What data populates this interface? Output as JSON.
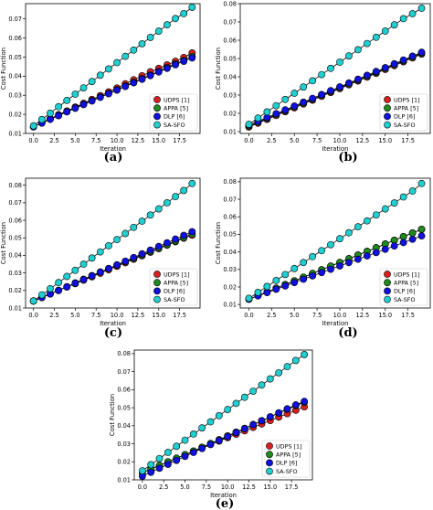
{
  "chart_data": [
    {
      "type": "line",
      "panel_label": "(a)",
      "xlabel": "Iteration",
      "ylabel": "Cost Function",
      "xlim": [
        -0.95,
        19.95
      ],
      "ylim": [
        0.01,
        0.078
      ],
      "xticks": [
        0.0,
        2.5,
        5.0,
        7.5,
        10.0,
        12.5,
        15.0,
        17.5
      ],
      "xtick_labels": [
        "0.0",
        "2.5",
        "5.0",
        "7.5",
        "10.0",
        "12.5",
        "15.0",
        "17.5"
      ],
      "yticks": [
        0.01,
        0.02,
        0.03,
        0.04,
        0.05,
        0.06,
        0.07
      ],
      "ytick_labels": [
        "0.01",
        "0.02",
        "0.03",
        "0.04",
        "0.05",
        "0.06",
        "0.07"
      ],
      "legend_position": "lower-right",
      "grid": false,
      "x": [
        0,
        1,
        2,
        3,
        4,
        5,
        6,
        7,
        8,
        9,
        10,
        11,
        12,
        13,
        14,
        15,
        16,
        17,
        18,
        19
      ],
      "series": [
        {
          "name": "UDPS [1]",
          "color": "#d62020",
          "values": [
            0.0135,
            0.0156,
            0.0177,
            0.0198,
            0.0218,
            0.0238,
            0.0258,
            0.0278,
            0.0298,
            0.0318,
            0.0338,
            0.036,
            0.0381,
            0.0402,
            0.0423,
            0.0441,
            0.0459,
            0.0478,
            0.0498,
            0.0522
          ]
        },
        {
          "name": "APPA [5]",
          "color": "#1f8a1f",
          "values": [
            0.0135,
            0.0155,
            0.0175,
            0.0195,
            0.0214,
            0.0234,
            0.0253,
            0.0272,
            0.0291,
            0.031,
            0.0329,
            0.0349,
            0.0368,
            0.0387,
            0.0406,
            0.0425,
            0.0445,
            0.0465,
            0.0483,
            0.0503
          ]
        },
        {
          "name": "DLP [6]",
          "color": "#1010e0",
          "values": [
            0.0135,
            0.0154,
            0.0174,
            0.0193,
            0.0213,
            0.0232,
            0.0251,
            0.027,
            0.0289,
            0.0308,
            0.0327,
            0.0346,
            0.0365,
            0.0384,
            0.0403,
            0.0422,
            0.0441,
            0.046,
            0.0478,
            0.0496
          ]
        },
        {
          "name": "SA-SFO",
          "color": "#20d0d0",
          "values": [
            0.014,
            0.0173,
            0.0206,
            0.024,
            0.0273,
            0.0306,
            0.0339,
            0.0372,
            0.0405,
            0.0438,
            0.0471,
            0.0504,
            0.0537,
            0.057,
            0.0603,
            0.0636,
            0.0669,
            0.0702,
            0.0728,
            0.0761
          ]
        }
      ]
    },
    {
      "type": "line",
      "panel_label": "(b)",
      "xlabel": "Iteration",
      "ylabel": "Cost Function",
      "xlim": [
        -0.95,
        19.95
      ],
      "ylim": [
        0.009,
        0.08
      ],
      "xticks": [
        0.0,
        2.5,
        5.0,
        7.5,
        10.0,
        12.5,
        15.0,
        17.5
      ],
      "xtick_labels": [
        "0.0",
        "2.5",
        "5.0",
        "7.5",
        "10.0",
        "12.5",
        "15.0",
        "17.5"
      ],
      "yticks": [
        0.01,
        0.02,
        0.03,
        0.04,
        0.05,
        0.06,
        0.07,
        0.08
      ],
      "ytick_labels": [
        "0.01",
        "0.02",
        "0.03",
        "0.04",
        "0.05",
        "0.06",
        "0.07",
        "0.08"
      ],
      "legend_position": "lower-right",
      "grid": false,
      "x": [
        0,
        1,
        2,
        3,
        4,
        5,
        6,
        7,
        8,
        9,
        10,
        11,
        12,
        13,
        14,
        15,
        16,
        17,
        18,
        19
      ],
      "series": [
        {
          "name": "UDPS [1]",
          "color": "#d62020",
          "values": [
            0.0125,
            0.0146,
            0.0167,
            0.0188,
            0.0209,
            0.023,
            0.0251,
            0.0272,
            0.0293,
            0.0314,
            0.0335,
            0.0356,
            0.0377,
            0.0398,
            0.0419,
            0.044,
            0.0461,
            0.0482,
            0.0503,
            0.0524
          ]
        },
        {
          "name": "APPA [5]",
          "color": "#1f8a1f",
          "values": [
            0.013,
            0.0151,
            0.0172,
            0.0193,
            0.0214,
            0.0235,
            0.0256,
            0.0277,
            0.0298,
            0.0319,
            0.034,
            0.0361,
            0.0382,
            0.0403,
            0.0424,
            0.0445,
            0.0466,
            0.0487,
            0.0508,
            0.0529
          ]
        },
        {
          "name": "DLP [6]",
          "color": "#1010e0",
          "values": [
            0.0135,
            0.0156,
            0.0177,
            0.0198,
            0.0219,
            0.024,
            0.0261,
            0.0282,
            0.0303,
            0.0324,
            0.0345,
            0.0366,
            0.0387,
            0.0408,
            0.0429,
            0.045,
            0.0471,
            0.0492,
            0.0513,
            0.0534
          ]
        },
        {
          "name": "SA-SFO",
          "color": "#20d0d0",
          "values": [
            0.014,
            0.0174,
            0.0208,
            0.0242,
            0.0276,
            0.031,
            0.0344,
            0.0378,
            0.0412,
            0.0446,
            0.048,
            0.0514,
            0.0548,
            0.0582,
            0.0616,
            0.065,
            0.0684,
            0.0718,
            0.0745,
            0.0775
          ]
        }
      ]
    },
    {
      "type": "line",
      "panel_label": "(c)",
      "xlabel": "Iteration",
      "ylabel": "Cost Function",
      "xlim": [
        -0.95,
        19.95
      ],
      "ylim": [
        0.01,
        0.084
      ],
      "xticks": [
        0.0,
        2.5,
        5.0,
        7.5,
        10.0,
        12.5,
        15.0,
        17.5
      ],
      "xtick_labels": [
        "0.0",
        "2.5",
        "5.0",
        "7.5",
        "10.0",
        "12.5",
        "15.0",
        "17.5"
      ],
      "yticks": [
        0.01,
        0.02,
        0.03,
        0.04,
        0.05,
        0.06,
        0.07,
        0.08
      ],
      "ytick_labels": [
        "0.01",
        "0.02",
        "0.03",
        "0.04",
        "0.05",
        "0.06",
        "0.07",
        "0.08"
      ],
      "legend_position": "lower-right",
      "grid": false,
      "x": [
        0,
        1,
        2,
        3,
        4,
        5,
        6,
        7,
        8,
        9,
        10,
        11,
        12,
        13,
        14,
        15,
        16,
        17,
        18,
        19
      ],
      "series": [
        {
          "name": "UDPS [1]",
          "color": "#d62020",
          "values": [
            0.014,
            0.016,
            0.018,
            0.02,
            0.022,
            0.0239,
            0.0259,
            0.0278,
            0.0298,
            0.0318,
            0.0338,
            0.0358,
            0.0378,
            0.0398,
            0.0418,
            0.0438,
            0.0458,
            0.0478,
            0.0498,
            0.0515
          ]
        },
        {
          "name": "APPA [5]",
          "color": "#1f8a1f",
          "values": [
            0.014,
            0.016,
            0.018,
            0.0201,
            0.0222,
            0.0243,
            0.0264,
            0.0285,
            0.0306,
            0.0325,
            0.0344,
            0.0363,
            0.0382,
            0.0402,
            0.0422,
            0.0442,
            0.0462,
            0.0482,
            0.0502,
            0.0522
          ]
        },
        {
          "name": "DLP [6]",
          "color": "#1010e0",
          "values": [
            0.014,
            0.016,
            0.018,
            0.02,
            0.022,
            0.0241,
            0.0262,
            0.0283,
            0.0304,
            0.0325,
            0.0346,
            0.0367,
            0.0388,
            0.0409,
            0.043,
            0.0451,
            0.0472,
            0.0493,
            0.0514,
            0.0535
          ]
        },
        {
          "name": "SA-SFO",
          "color": "#20d0d0",
          "values": [
            0.014,
            0.0175,
            0.021,
            0.0245,
            0.028,
            0.0315,
            0.035,
            0.0385,
            0.042,
            0.0455,
            0.049,
            0.0525,
            0.056,
            0.0595,
            0.063,
            0.0665,
            0.07,
            0.0735,
            0.077,
            0.081
          ]
        }
      ]
    },
    {
      "type": "line",
      "panel_label": "(d)",
      "xlabel": "Iteration",
      "ylabel": "Cost Function",
      "xlim": [
        -0.95,
        19.95
      ],
      "ylim": [
        0.008,
        0.082
      ],
      "xticks": [
        0.0,
        2.5,
        5.0,
        7.5,
        10.0,
        12.5,
        15.0,
        17.5
      ],
      "xtick_labels": [
        "0.0",
        "2.5",
        "5.0",
        "7.5",
        "10.0",
        "12.5",
        "15.0",
        "17.5"
      ],
      "yticks": [
        0.01,
        0.02,
        0.03,
        0.04,
        0.05,
        0.06,
        0.07,
        0.08
      ],
      "ytick_labels": [
        "0.01",
        "0.02",
        "0.03",
        "0.04",
        "0.05",
        "0.06",
        "0.07",
        "0.08"
      ],
      "legend_position": "lower-right",
      "grid": false,
      "x": [
        0,
        1,
        2,
        3,
        4,
        5,
        6,
        7,
        8,
        9,
        10,
        11,
        12,
        13,
        14,
        15,
        16,
        17,
        18,
        19
      ],
      "series": [
        {
          "name": "UDPS [1]",
          "color": "#d62020",
          "values": [
            0.013,
            0.0151,
            0.0172,
            0.0193,
            0.0214,
            0.0235,
            0.0256,
            0.0277,
            0.0298,
            0.0319,
            0.034,
            0.0361,
            0.0382,
            0.0403,
            0.0424,
            0.0445,
            0.0466,
            0.0487,
            0.0508,
            0.0529
          ]
        },
        {
          "name": "APPA [5]",
          "color": "#1f8a1f",
          "values": [
            0.013,
            0.0151,
            0.0172,
            0.0193,
            0.0214,
            0.0235,
            0.0256,
            0.0277,
            0.0298,
            0.0319,
            0.034,
            0.0361,
            0.0382,
            0.0403,
            0.0424,
            0.0445,
            0.0466,
            0.0487,
            0.0508,
            0.0529
          ]
        },
        {
          "name": "DLP [6]",
          "color": "#1010e0",
          "values": [
            0.013,
            0.0149,
            0.0168,
            0.0187,
            0.0206,
            0.0225,
            0.0244,
            0.0263,
            0.0282,
            0.0301,
            0.032,
            0.0339,
            0.0358,
            0.0377,
            0.0396,
            0.0415,
            0.0434,
            0.0453,
            0.0472,
            0.0491
          ]
        },
        {
          "name": "SA-SFO",
          "color": "#20d0d0",
          "values": [
            0.0135,
            0.0169,
            0.0203,
            0.0237,
            0.0271,
            0.0305,
            0.0339,
            0.0373,
            0.0407,
            0.0441,
            0.0475,
            0.0509,
            0.0543,
            0.0577,
            0.0611,
            0.0645,
            0.0679,
            0.0713,
            0.0747,
            0.079
          ]
        }
      ]
    },
    {
      "type": "line",
      "panel_label": "(e)",
      "xlabel": "Iteration",
      "ylabel": "Cost Function",
      "xlim": [
        -0.95,
        19.95
      ],
      "ylim": [
        0.01,
        0.082
      ],
      "xticks": [
        0.0,
        2.5,
        5.0,
        7.5,
        10.0,
        12.5,
        15.0,
        17.5
      ],
      "xtick_labels": [
        "0.0",
        "2.5",
        "5.0",
        "7.5",
        "10.0",
        "12.5",
        "15.0",
        "17.5"
      ],
      "yticks": [
        0.01,
        0.02,
        0.03,
        0.04,
        0.05,
        0.06,
        0.07,
        0.08
      ],
      "ytick_labels": [
        "0.01",
        "0.02",
        "0.03",
        "0.04",
        "0.05",
        "0.06",
        "0.07",
        "0.08"
      ],
      "legend_position": "lower-right",
      "grid": false,
      "x": [
        0,
        1,
        2,
        3,
        4,
        5,
        6,
        7,
        8,
        9,
        10,
        11,
        12,
        13,
        14,
        15,
        16,
        17,
        18,
        19
      ],
      "series": [
        {
          "name": "UDPS [1]",
          "color": "#d62020",
          "values": [
            0.014,
            0.016,
            0.018,
            0.02,
            0.022,
            0.0239,
            0.0258,
            0.0277,
            0.0296,
            0.0315,
            0.0334,
            0.0353,
            0.0372,
            0.0391,
            0.041,
            0.0429,
            0.0448,
            0.0467,
            0.0486,
            0.0505
          ]
        },
        {
          "name": "APPA [5]",
          "color": "#1f8a1f",
          "values": [
            0.014,
            0.016,
            0.018,
            0.02,
            0.022,
            0.024,
            0.026,
            0.0281,
            0.0302,
            0.0323,
            0.0344,
            0.0365,
            0.0386,
            0.0407,
            0.0428,
            0.0449,
            0.047,
            0.0491,
            0.0512,
            0.053
          ]
        },
        {
          "name": "DLP [6]",
          "color": "#1010e0",
          "values": [
            0.012,
            0.0142,
            0.0164,
            0.0186,
            0.0208,
            0.023,
            0.0252,
            0.0274,
            0.0296,
            0.0318,
            0.034,
            0.0362,
            0.0384,
            0.0406,
            0.0428,
            0.045,
            0.0472,
            0.0494,
            0.0516,
            0.0535
          ]
        },
        {
          "name": "SA-SFO",
          "color": "#20d0d0",
          "values": [
            0.015,
            0.0184,
            0.0218,
            0.0252,
            0.0286,
            0.032,
            0.0354,
            0.0388,
            0.0422,
            0.0456,
            0.049,
            0.0524,
            0.0558,
            0.0592,
            0.0626,
            0.066,
            0.0694,
            0.0728,
            0.0762,
            0.0795
          ]
        }
      ]
    }
  ]
}
